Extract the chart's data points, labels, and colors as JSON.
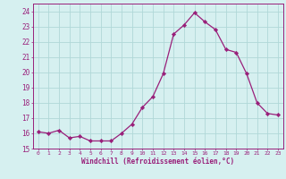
{
  "x": [
    0,
    1,
    2,
    3,
    4,
    5,
    6,
    7,
    8,
    9,
    10,
    11,
    12,
    13,
    14,
    15,
    16,
    17,
    18,
    19,
    20,
    21,
    22,
    23
  ],
  "y": [
    16.1,
    16.0,
    16.2,
    15.7,
    15.8,
    15.5,
    15.5,
    15.5,
    16.0,
    16.6,
    17.7,
    18.4,
    19.9,
    22.5,
    23.1,
    23.9,
    23.3,
    22.8,
    21.5,
    21.3,
    19.9,
    18.0,
    17.3,
    17.2
  ],
  "line_color": "#991f7a",
  "marker": "D",
  "marker_size": 2.2,
  "bg_color": "#d6f0f0",
  "grid_color": "#b0d8d8",
  "xlabel": "Windchill (Refroidissement éolien,°C)",
  "xlabel_color": "#991f7a",
  "tick_color": "#991f7a",
  "ylim": [
    15,
    24.5
  ],
  "yticks": [
    15,
    16,
    17,
    18,
    19,
    20,
    21,
    22,
    23,
    24
  ],
  "xticks": [
    0,
    1,
    2,
    3,
    4,
    5,
    6,
    7,
    8,
    9,
    10,
    11,
    12,
    13,
    14,
    15,
    16,
    17,
    18,
    19,
    20,
    21,
    22,
    23
  ],
  "xlim": [
    -0.5,
    23.5
  ]
}
